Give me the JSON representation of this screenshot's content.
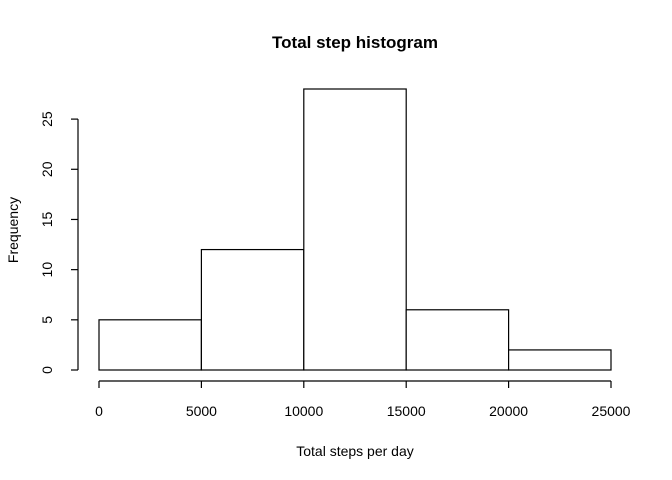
{
  "chart_data": {
    "type": "bar",
    "title": "Total step histogram",
    "xlabel": "Total steps per day",
    "ylabel": "Frequency",
    "bins": [
      {
        "from": 0,
        "to": 5000,
        "value": 5
      },
      {
        "from": 5000,
        "to": 10000,
        "value": 12
      },
      {
        "from": 10000,
        "to": 15000,
        "value": 28
      },
      {
        "from": 15000,
        "to": 20000,
        "value": 6
      },
      {
        "from": 20000,
        "to": 25000,
        "value": 2
      }
    ],
    "xlim": [
      0,
      25000
    ],
    "ylim": [
      0,
      28
    ],
    "xticks": [
      "0",
      "5000",
      "10000",
      "15000",
      "20000",
      "25000"
    ],
    "yticks": [
      "0",
      "5",
      "10",
      "15",
      "20",
      "25"
    ],
    "grid": false,
    "legend": "none",
    "colors": {
      "bar_fill": "#ffffff",
      "bar_stroke": "#000000",
      "axis": "#000000",
      "background": "#ffffff"
    }
  }
}
